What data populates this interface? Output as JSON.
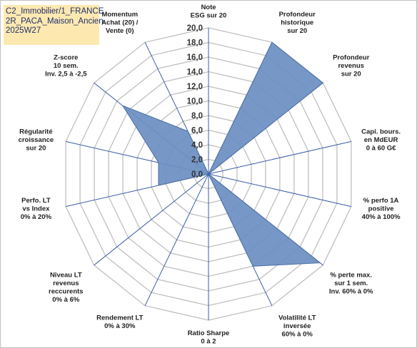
{
  "title_lines": [
    "C2_Immobilier/1_FRANCE",
    "2R_PACA_Maison_Ancien",
    "2025W27"
  ],
  "colors": {
    "fill": "#6b8fc2",
    "stroke": "#4a6fa5",
    "grid": "#bfbfbf",
    "spoke": "#3a5ea8",
    "title_bg": "#fde9b0",
    "text": "#1f1f1f"
  },
  "chart_data": {
    "type": "radar",
    "r_min": 0,
    "r_max": 20,
    "r_step": 2,
    "r_tick_labels": [
      "0,0",
      "2,0",
      "4,0",
      "6,0",
      "8,0",
      "10,0",
      "12,0",
      "14,0",
      "16,0",
      "18,0",
      "20,0"
    ],
    "axes": [
      {
        "label": [
          "Note",
          "ESG sur 20"
        ],
        "value": 0
      },
      {
        "label": [
          "Profondeur",
          "historique",
          "sur 20"
        ],
        "value": 20
      },
      {
        "label": [
          "Profondeur",
          "revenus",
          "sur 20"
        ],
        "value": 20
      },
      {
        "label": [
          "Capi. bours.",
          "en MdEUR",
          "0 à 60 G€"
        ],
        "value": 0
      },
      {
        "label": [
          "% perfo 1A",
          "positive",
          "40% à 100%"
        ],
        "value": 0
      },
      {
        "label": [
          "% perte max.",
          "sur 1 sem.",
          "Inv. 60% à 0%"
        ],
        "value": 19.5
      },
      {
        "label": [
          "Volatilité LT",
          "inversée",
          "60% à 0%"
        ],
        "value": 14
      },
      {
        "label": [
          "Ratio Sharpe",
          "0 à 2"
        ],
        "value": 0
      },
      {
        "label": [
          "Rendement LT",
          "0% à 30%"
        ],
        "value": 0
      },
      {
        "label": [
          "Niveau LT",
          "revenus",
          "reccurents",
          "0% à 6%"
        ],
        "value": 0
      },
      {
        "label": [
          "Perfo. LT",
          "vs Index",
          "0% à 20%"
        ],
        "value": 7
      },
      {
        "label": [
          "Régularité",
          "croissance",
          "sur 20"
        ],
        "value": 7
      },
      {
        "label": [
          "Z-score",
          "10 sem.",
          "Inv. 2,5 à -2,5"
        ],
        "value": 15
      },
      {
        "label": [
          "Momentum",
          "Achat (20) /",
          "Vente (0)"
        ],
        "value": 6.5
      }
    ]
  }
}
